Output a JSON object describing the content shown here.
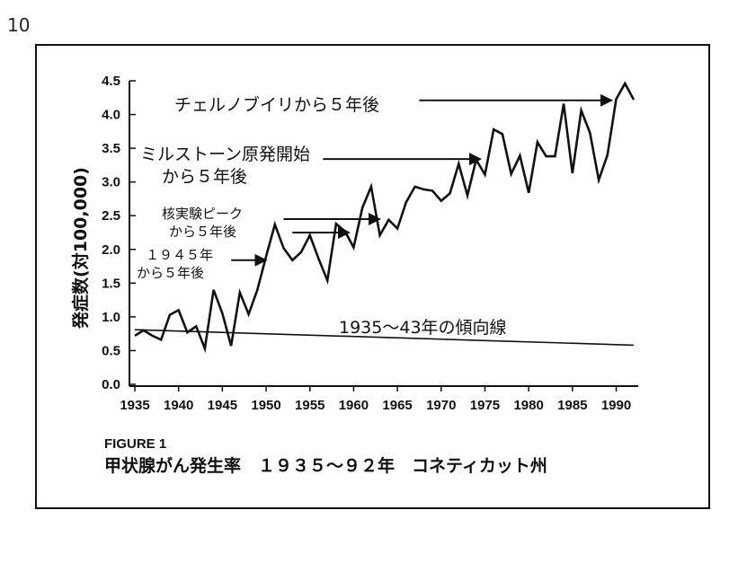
{
  "page_number": "10",
  "figure": {
    "label": "FIGURE 1",
    "caption": "甲状腺がん発生率　１９３５〜９２年　コネティカット州"
  },
  "chart_data": {
    "type": "line",
    "title": "",
    "xlabel": "",
    "ylabel": "発症数(対100,000)",
    "xlim": [
      1935,
      1992
    ],
    "ylim": [
      0.0,
      4.5
    ],
    "x_ticks": [
      "1935",
      "1940",
      "1945",
      "1950",
      "1955",
      "1960",
      "1965",
      "1970",
      "1975",
      "1980",
      "1985",
      "1990"
    ],
    "y_ticks": [
      "0.0",
      "0.5",
      "1.0",
      "1.5",
      "2.0",
      "2.5",
      "3.0",
      "3.5",
      "4.0",
      "4.5"
    ],
    "grid": false,
    "series": [
      {
        "name": "",
        "x": [
          1935,
          1936,
          1937,
          1938,
          1939,
          1940,
          1941,
          1942,
          1943,
          1944,
          1945,
          1946,
          1947,
          1948,
          1949,
          1950,
          1951,
          1952,
          1953,
          1954,
          1955,
          1956,
          1957,
          1958,
          1959,
          1960,
          1961,
          1962,
          1963,
          1964,
          1965,
          1966,
          1967,
          1968,
          1969,
          1970,
          1971,
          1972,
          1973,
          1974,
          1975,
          1976,
          1977,
          1978,
          1979,
          1980,
          1981,
          1982,
          1983,
          1984,
          1985,
          1986,
          1987,
          1988,
          1989,
          1990,
          1991,
          1992
        ],
        "y": [
          0.72,
          0.8,
          0.72,
          0.66,
          1.03,
          1.1,
          0.77,
          0.86,
          0.53,
          1.4,
          1.05,
          0.57,
          1.36,
          1.04,
          1.4,
          1.9,
          2.37,
          2.02,
          1.84,
          1.96,
          2.21,
          1.86,
          1.54,
          2.38,
          2.27,
          2.03,
          2.62,
          2.93,
          2.21,
          2.44,
          2.31,
          2.7,
          2.93,
          2.89,
          2.87,
          2.72,
          2.83,
          3.27,
          2.8,
          3.33,
          3.11,
          3.78,
          3.71,
          3.12,
          3.39,
          2.84,
          3.59,
          3.38,
          3.38,
          4.16,
          3.13,
          4.06,
          3.73,
          3.03,
          3.4,
          4.23,
          4.46,
          4.22
        ]
      },
      {
        "name": "1935〜43年の傾向線",
        "x": [
          1935,
          1992
        ],
        "y": [
          0.81,
          0.58
        ]
      }
    ],
    "annotations": [
      {
        "lines": [
          "チェルノブイリから５年後"
        ],
        "arrow_from": [
          1967.5,
          4.21
        ],
        "arrow_to": [
          1989.5,
          4.21
        ]
      },
      {
        "lines": [
          "ミルストーン原発開始",
          "から５年後"
        ],
        "arrow_from": [
          1956.5,
          3.34
        ],
        "arrow_to": [
          1974.5,
          3.34
        ]
      },
      {
        "lines": [
          "核実験ピーク",
          "から５年後"
        ],
        "arrow_from": [
          1952.0,
          2.45
        ],
        "arrow_to": [
          1963.0,
          2.45
        ]
      },
      {
        "lines": [],
        "arrow_from": [
          1953.0,
          2.25
        ],
        "arrow_to": [
          1959.5,
          2.25
        ]
      },
      {
        "lines": [
          "１９４５年",
          "から５年後"
        ],
        "arrow_from": [
          1946.0,
          1.84
        ],
        "arrow_to": [
          1950.0,
          1.84
        ]
      }
    ],
    "trend_label": "1935〜43年の傾向線"
  }
}
